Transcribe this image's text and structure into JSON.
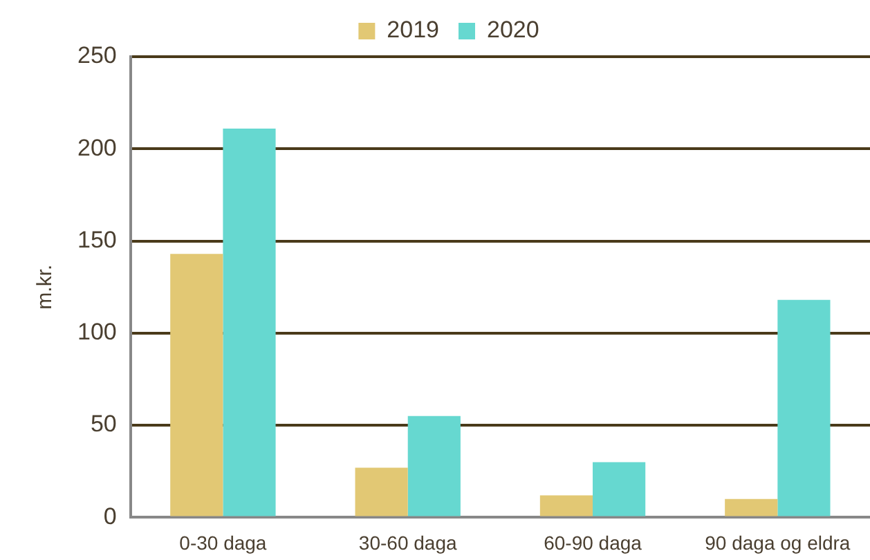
{
  "chart_data": {
    "type": "bar",
    "ylabel": "m.kr.",
    "categories": [
      "0-30 daga",
      "30-60 daga",
      "60-90 daga",
      "90 daga og eldra"
    ],
    "series": [
      {
        "name": "2019",
        "color": "#e2c874",
        "values": [
          143,
          27,
          12,
          10
        ]
      },
      {
        "name": "2020",
        "color": "#66d8d0",
        "values": [
          211,
          55,
          30,
          118
        ]
      }
    ],
    "ylim": [
      0,
      250
    ],
    "yticks": [
      0,
      50,
      100,
      150,
      200,
      250
    ],
    "grid": "y",
    "legend": "top"
  }
}
